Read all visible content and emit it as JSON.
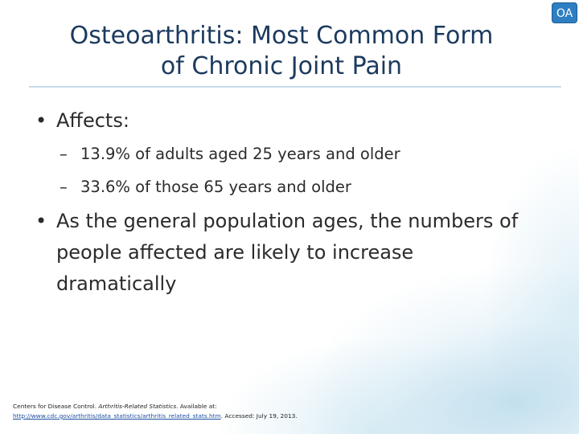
{
  "badge": "OA",
  "header": {
    "title_lines": [
      "Osteoarthritis: Most Common Form",
      "of Chronic Joint Pain"
    ]
  },
  "bullets": [
    {
      "text": "Affects:",
      "sub": [
        "13.9% of adults aged 25 years and older",
        "33.6% of those 65 years and older"
      ]
    },
    {
      "text": "As the general population ages, the numbers of people affected are likely to increase dramatically"
    }
  ],
  "reference": {
    "source": "Centers for Disease Control. ",
    "title": "Arthritis-Related Statistics",
    "available": ". Available at: ",
    "url": "http://www.cdc.gov/arthritis/data_statistics/arthritis_related_stats.htm",
    "accessed": ". Accessed: July 19, 2013."
  }
}
